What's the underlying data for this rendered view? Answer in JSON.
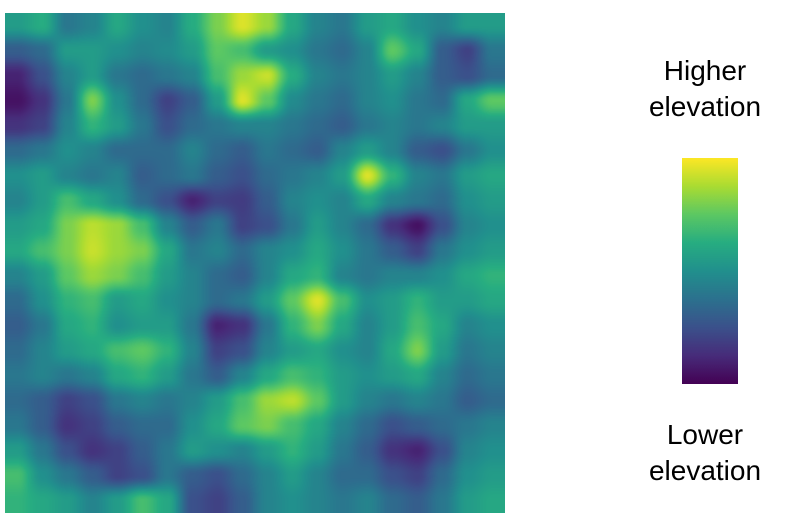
{
  "legend": {
    "high_lines": [
      "Higher",
      "elevation"
    ],
    "low_lines": [
      "Lower",
      "elevation"
    ]
  },
  "colormap": {
    "name": "viridis",
    "stops": [
      "#440154",
      "#472c7a",
      "#3b518b",
      "#2c718e",
      "#21908d",
      "#27ad81",
      "#5cc863",
      "#aadc32",
      "#fde725"
    ]
  },
  "chart_data": {
    "type": "heatmap",
    "title": "",
    "xlabel": "",
    "ylabel": "",
    "colorbar": {
      "high": "Higher elevation",
      "low": "Lower elevation",
      "colormap": "viridis"
    },
    "value_range": [
      0,
      1
    ],
    "grid": false,
    "rows": 20,
    "cols": 20,
    "z": [
      [
        0.55,
        0.62,
        0.4,
        0.45,
        0.6,
        0.5,
        0.45,
        0.62,
        0.8,
        0.95,
        0.85,
        0.6,
        0.45,
        0.4,
        0.55,
        0.6,
        0.5,
        0.45,
        0.55,
        0.55
      ],
      [
        0.3,
        0.35,
        0.55,
        0.55,
        0.5,
        0.45,
        0.48,
        0.55,
        0.75,
        0.7,
        0.55,
        0.5,
        0.4,
        0.35,
        0.45,
        0.75,
        0.6,
        0.3,
        0.2,
        0.4
      ],
      [
        0.1,
        0.25,
        0.45,
        0.55,
        0.4,
        0.35,
        0.4,
        0.45,
        0.7,
        0.85,
        0.92,
        0.62,
        0.45,
        0.4,
        0.45,
        0.55,
        0.45,
        0.3,
        0.25,
        0.35
      ],
      [
        0.05,
        0.15,
        0.4,
        0.8,
        0.5,
        0.35,
        0.2,
        0.3,
        0.55,
        0.95,
        0.75,
        0.48,
        0.4,
        0.35,
        0.45,
        0.5,
        0.4,
        0.35,
        0.6,
        0.75
      ],
      [
        0.15,
        0.2,
        0.45,
        0.65,
        0.55,
        0.4,
        0.25,
        0.35,
        0.4,
        0.45,
        0.45,
        0.4,
        0.35,
        0.3,
        0.4,
        0.45,
        0.4,
        0.45,
        0.55,
        0.55
      ],
      [
        0.35,
        0.4,
        0.5,
        0.45,
        0.35,
        0.35,
        0.35,
        0.45,
        0.35,
        0.3,
        0.4,
        0.35,
        0.3,
        0.45,
        0.55,
        0.45,
        0.3,
        0.25,
        0.4,
        0.5
      ],
      [
        0.5,
        0.55,
        0.45,
        0.4,
        0.45,
        0.3,
        0.35,
        0.4,
        0.3,
        0.25,
        0.35,
        0.4,
        0.45,
        0.55,
        0.95,
        0.65,
        0.45,
        0.4,
        0.55,
        0.6
      ],
      [
        0.45,
        0.55,
        0.7,
        0.6,
        0.5,
        0.35,
        0.25,
        0.1,
        0.2,
        0.18,
        0.3,
        0.45,
        0.5,
        0.45,
        0.6,
        0.45,
        0.4,
        0.35,
        0.5,
        0.55
      ],
      [
        0.55,
        0.6,
        0.8,
        0.9,
        0.85,
        0.7,
        0.45,
        0.3,
        0.4,
        0.2,
        0.25,
        0.4,
        0.55,
        0.45,
        0.35,
        0.15,
        0.05,
        0.25,
        0.45,
        0.5
      ],
      [
        0.6,
        0.7,
        0.8,
        0.92,
        0.85,
        0.8,
        0.6,
        0.4,
        0.45,
        0.35,
        0.45,
        0.5,
        0.6,
        0.5,
        0.4,
        0.3,
        0.2,
        0.4,
        0.5,
        0.55
      ],
      [
        0.45,
        0.55,
        0.75,
        0.85,
        0.8,
        0.7,
        0.55,
        0.45,
        0.35,
        0.3,
        0.45,
        0.6,
        0.65,
        0.45,
        0.4,
        0.45,
        0.45,
        0.5,
        0.6,
        0.65
      ],
      [
        0.35,
        0.5,
        0.65,
        0.7,
        0.55,
        0.6,
        0.5,
        0.45,
        0.35,
        0.4,
        0.55,
        0.75,
        0.95,
        0.7,
        0.5,
        0.55,
        0.65,
        0.55,
        0.55,
        0.6
      ],
      [
        0.3,
        0.4,
        0.6,
        0.65,
        0.5,
        0.55,
        0.55,
        0.4,
        0.1,
        0.15,
        0.4,
        0.65,
        0.8,
        0.6,
        0.45,
        0.55,
        0.7,
        0.6,
        0.45,
        0.5
      ],
      [
        0.35,
        0.45,
        0.55,
        0.6,
        0.7,
        0.75,
        0.65,
        0.45,
        0.2,
        0.25,
        0.45,
        0.55,
        0.6,
        0.5,
        0.45,
        0.6,
        0.8,
        0.55,
        0.4,
        0.45
      ],
      [
        0.4,
        0.45,
        0.4,
        0.45,
        0.6,
        0.65,
        0.55,
        0.4,
        0.3,
        0.45,
        0.6,
        0.7,
        0.65,
        0.55,
        0.5,
        0.55,
        0.6,
        0.45,
        0.35,
        0.4
      ],
      [
        0.35,
        0.3,
        0.2,
        0.25,
        0.4,
        0.45,
        0.4,
        0.45,
        0.55,
        0.7,
        0.85,
        0.9,
        0.75,
        0.55,
        0.45,
        0.4,
        0.45,
        0.4,
        0.3,
        0.35
      ],
      [
        0.4,
        0.3,
        0.15,
        0.2,
        0.3,
        0.35,
        0.35,
        0.5,
        0.6,
        0.75,
        0.8,
        0.7,
        0.6,
        0.45,
        0.35,
        0.25,
        0.3,
        0.35,
        0.4,
        0.45
      ],
      [
        0.55,
        0.4,
        0.25,
        0.15,
        0.2,
        0.3,
        0.4,
        0.55,
        0.5,
        0.45,
        0.55,
        0.65,
        0.55,
        0.4,
        0.3,
        0.15,
        0.1,
        0.25,
        0.45,
        0.5
      ],
      [
        0.7,
        0.5,
        0.4,
        0.3,
        0.2,
        0.25,
        0.4,
        0.3,
        0.25,
        0.35,
        0.45,
        0.55,
        0.45,
        0.35,
        0.35,
        0.25,
        0.2,
        0.35,
        0.5,
        0.55
      ],
      [
        0.65,
        0.6,
        0.55,
        0.45,
        0.55,
        0.7,
        0.6,
        0.25,
        0.2,
        0.3,
        0.45,
        0.5,
        0.45,
        0.4,
        0.45,
        0.35,
        0.3,
        0.4,
        0.55,
        0.6
      ]
    ]
  }
}
